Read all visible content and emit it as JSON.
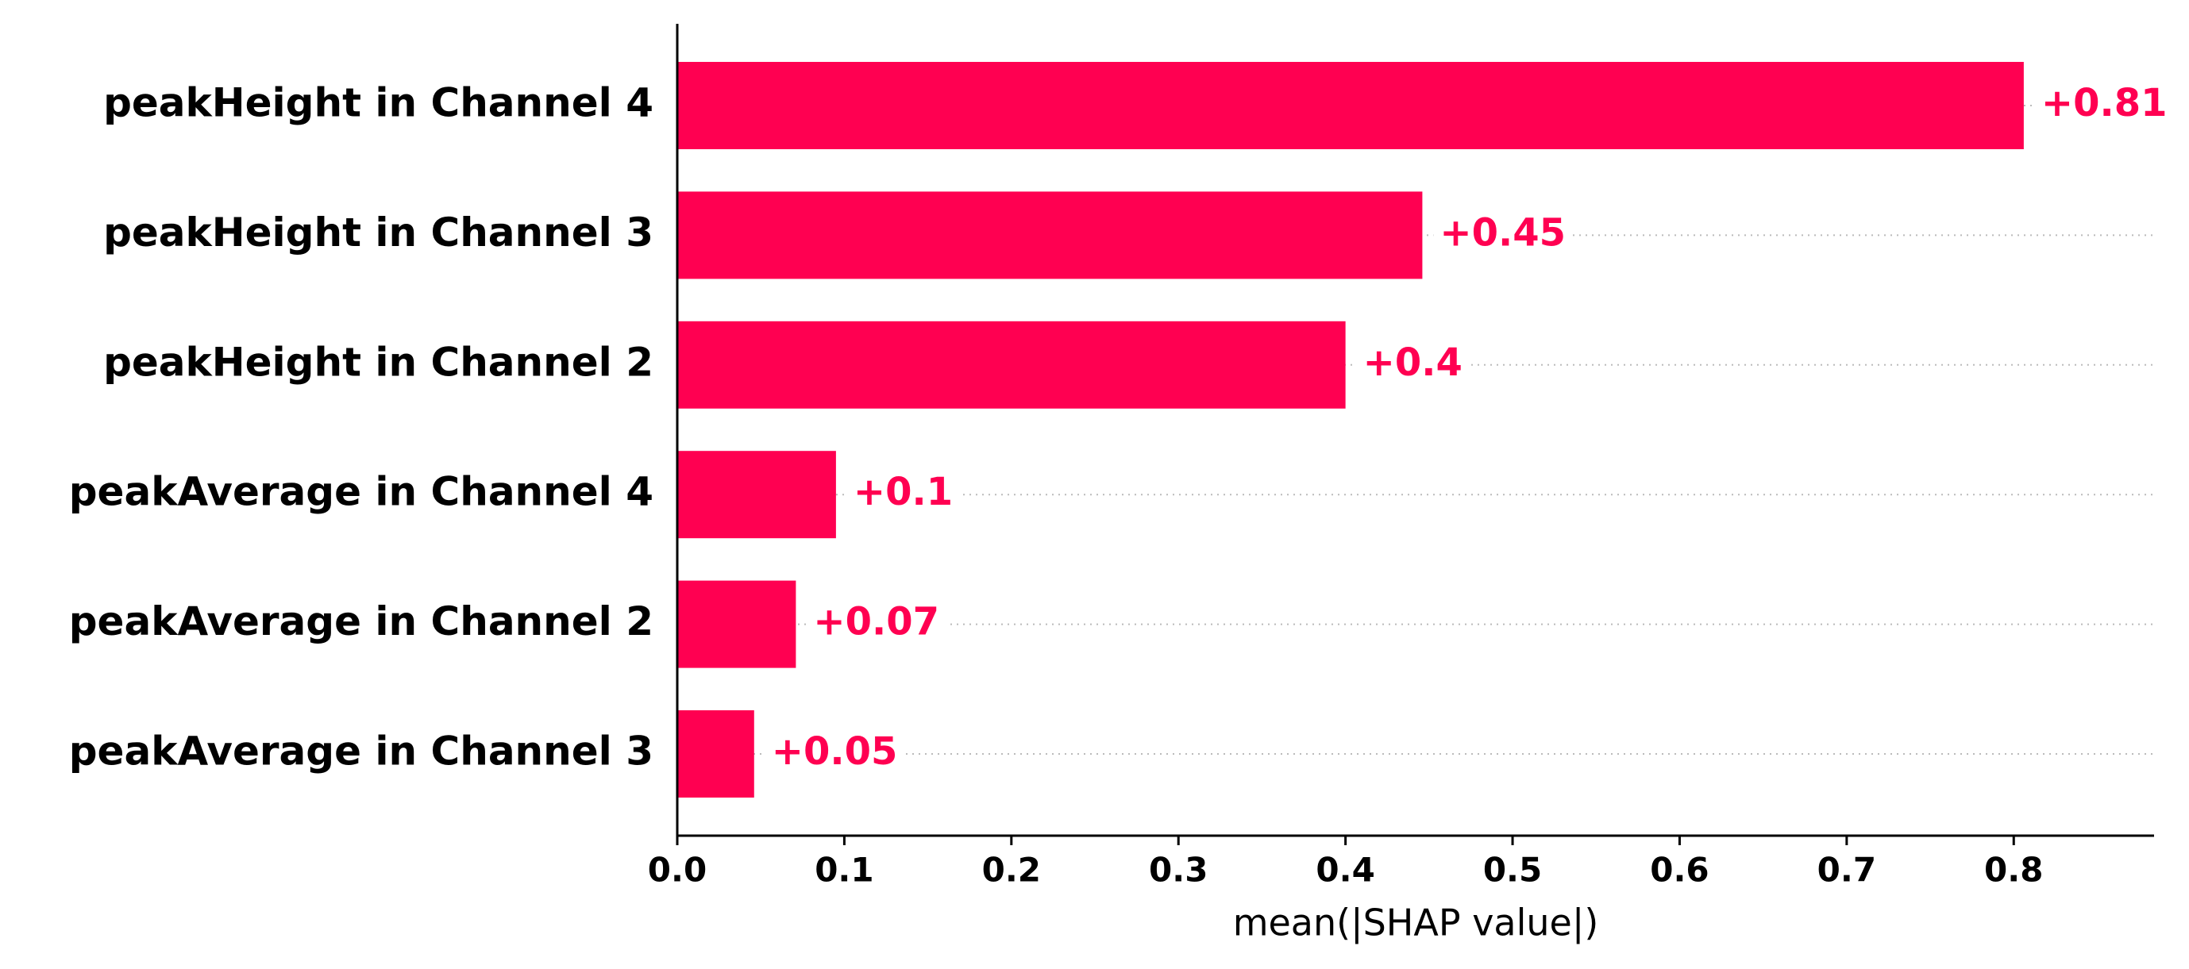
{
  "chart_data": {
    "type": "bar",
    "orientation": "horizontal",
    "categories": [
      "peakHeight in Channel 4",
      "peakHeight in Channel 3",
      "peakHeight in Channel 2",
      "peakAverage in Channel 4",
      "peakAverage in Channel 2",
      "peakAverage in Channel 3"
    ],
    "values": [
      0.806,
      0.446,
      0.4,
      0.095,
      0.071,
      0.046
    ],
    "value_labels": [
      "+0.81",
      "+0.45",
      "+0.4",
      "+0.1",
      "+0.07",
      "+0.05"
    ],
    "color": "#ff0051",
    "xlabel": "mean(|SHAP value|)",
    "xlim": [
      0,
      0.884
    ],
    "xticks": [
      {
        "value": 0,
        "label": "0.0"
      },
      0.1,
      0.2,
      0.3,
      0.4,
      0.5,
      0.6,
      0.7,
      0.8
    ]
  }
}
